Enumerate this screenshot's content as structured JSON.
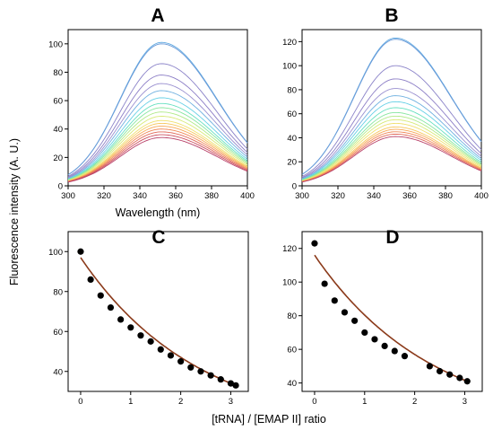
{
  "figure": {
    "shared_ylabel": "Fluorescence intensity (A. U.)",
    "bottom_xlabel": "[tRNA] / [EMAP II] ratio"
  },
  "chart_data": [
    {
      "panel": "A",
      "type": "line",
      "title": "A",
      "xlabel": "Wavelength (nm)",
      "ylabel": "Fluorescence intensity (A. U.)",
      "xlim": [
        300,
        400
      ],
      "ylim": [
        0,
        110
      ],
      "xticks": [
        300,
        320,
        340,
        360,
        380,
        400
      ],
      "yticks": [
        0,
        20,
        40,
        60,
        80,
        100
      ],
      "peak_wavelength": 352,
      "series_peaks": [
        101,
        100,
        86,
        78,
        72,
        67,
        62,
        58,
        55,
        52,
        49,
        46,
        44,
        42,
        40,
        38,
        36,
        34
      ],
      "series_colors": [
        "#5fa8e0",
        "#6a9ad8",
        "#8a82c8",
        "#8c7ec6",
        "#9a90d0",
        "#6fb0e0",
        "#66d0e6",
        "#66e0c0",
        "#88e6a0",
        "#b0ea88",
        "#d8ea78",
        "#f0e070",
        "#f7c860",
        "#f7a858",
        "#f08858",
        "#e06858",
        "#cc5060",
        "#b84068"
      ]
    },
    {
      "panel": "B",
      "type": "line",
      "title": "B",
      "xlabel": "",
      "ylabel": "",
      "xlim": [
        300,
        400
      ],
      "ylim": [
        0,
        130
      ],
      "xticks": [
        300,
        320,
        340,
        360,
        380,
        400
      ],
      "yticks": [
        0,
        20,
        40,
        60,
        80,
        100,
        120
      ],
      "peak_wavelength": 352,
      "series_peaks": [
        123,
        122,
        100,
        89,
        81,
        75,
        70,
        65,
        61,
        58,
        55,
        52,
        49,
        47,
        45,
        43,
        41
      ],
      "series_colors": [
        "#5fa8e0",
        "#6a9ad8",
        "#8a82c8",
        "#8c7ec6",
        "#9a90d0",
        "#6fb0e0",
        "#66d0e6",
        "#66e0c0",
        "#88e6a0",
        "#b0ea88",
        "#d8ea78",
        "#f0e070",
        "#f7c860",
        "#f7a858",
        "#f08858",
        "#e06858",
        "#b84068"
      ]
    },
    {
      "panel": "C",
      "type": "scatter",
      "title": "C",
      "xlabel": "[tRNA] / [EMAP II] ratio",
      "ylabel": "",
      "xlim": [
        -0.25,
        3.35
      ],
      "ylim": [
        30,
        110
      ],
      "xticks": [
        0,
        1,
        2,
        3
      ],
      "yticks": [
        40,
        60,
        80,
        100
      ],
      "x": [
        0,
        0.2,
        0.4,
        0.6,
        0.8,
        1.0,
        1.2,
        1.4,
        1.6,
        1.8,
        2.0,
        2.2,
        2.4,
        2.6,
        2.8,
        3.0,
        3.1
      ],
      "y": [
        100,
        86,
        78,
        72,
        66,
        62,
        58,
        55,
        51,
        48,
        45,
        42,
        40,
        38,
        36,
        34,
        33
      ],
      "fit": {
        "color": "#8b3a1a",
        "start": 97,
        "end": 33
      }
    },
    {
      "panel": "D",
      "type": "scatter",
      "title": "D",
      "xlabel": "",
      "ylabel": "",
      "xlim": [
        -0.25,
        3.35
      ],
      "ylim": [
        35,
        130
      ],
      "xticks": [
        0,
        1,
        2,
        3
      ],
      "yticks": [
        40,
        60,
        80,
        100,
        120
      ],
      "x": [
        0,
        0.2,
        0.4,
        0.6,
        0.8,
        1.0,
        1.2,
        1.4,
        1.6,
        1.8,
        2.3,
        2.5,
        2.7,
        2.9,
        3.05
      ],
      "y": [
        123,
        99,
        89,
        82,
        77,
        70,
        66,
        62,
        59,
        56,
        50,
        47,
        45,
        43,
        41
      ],
      "fit": {
        "color": "#8b3a1a",
        "start": 116,
        "end": 41
      }
    }
  ]
}
